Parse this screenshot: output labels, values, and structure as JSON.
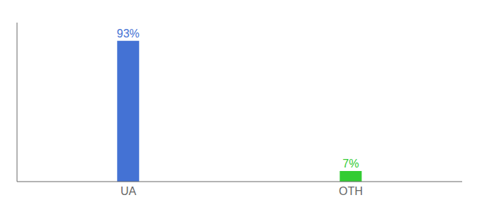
{
  "chart_data": {
    "type": "bar",
    "categories": [
      "UA",
      "OTH"
    ],
    "values": [
      93,
      7
    ],
    "value_labels": [
      "93%",
      "7%"
    ],
    "data_labels": true,
    "colors": [
      "#4472d4",
      "#33cc33"
    ],
    "ylim": [
      0,
      105
    ],
    "grid": false,
    "tick_labels": "x"
  }
}
